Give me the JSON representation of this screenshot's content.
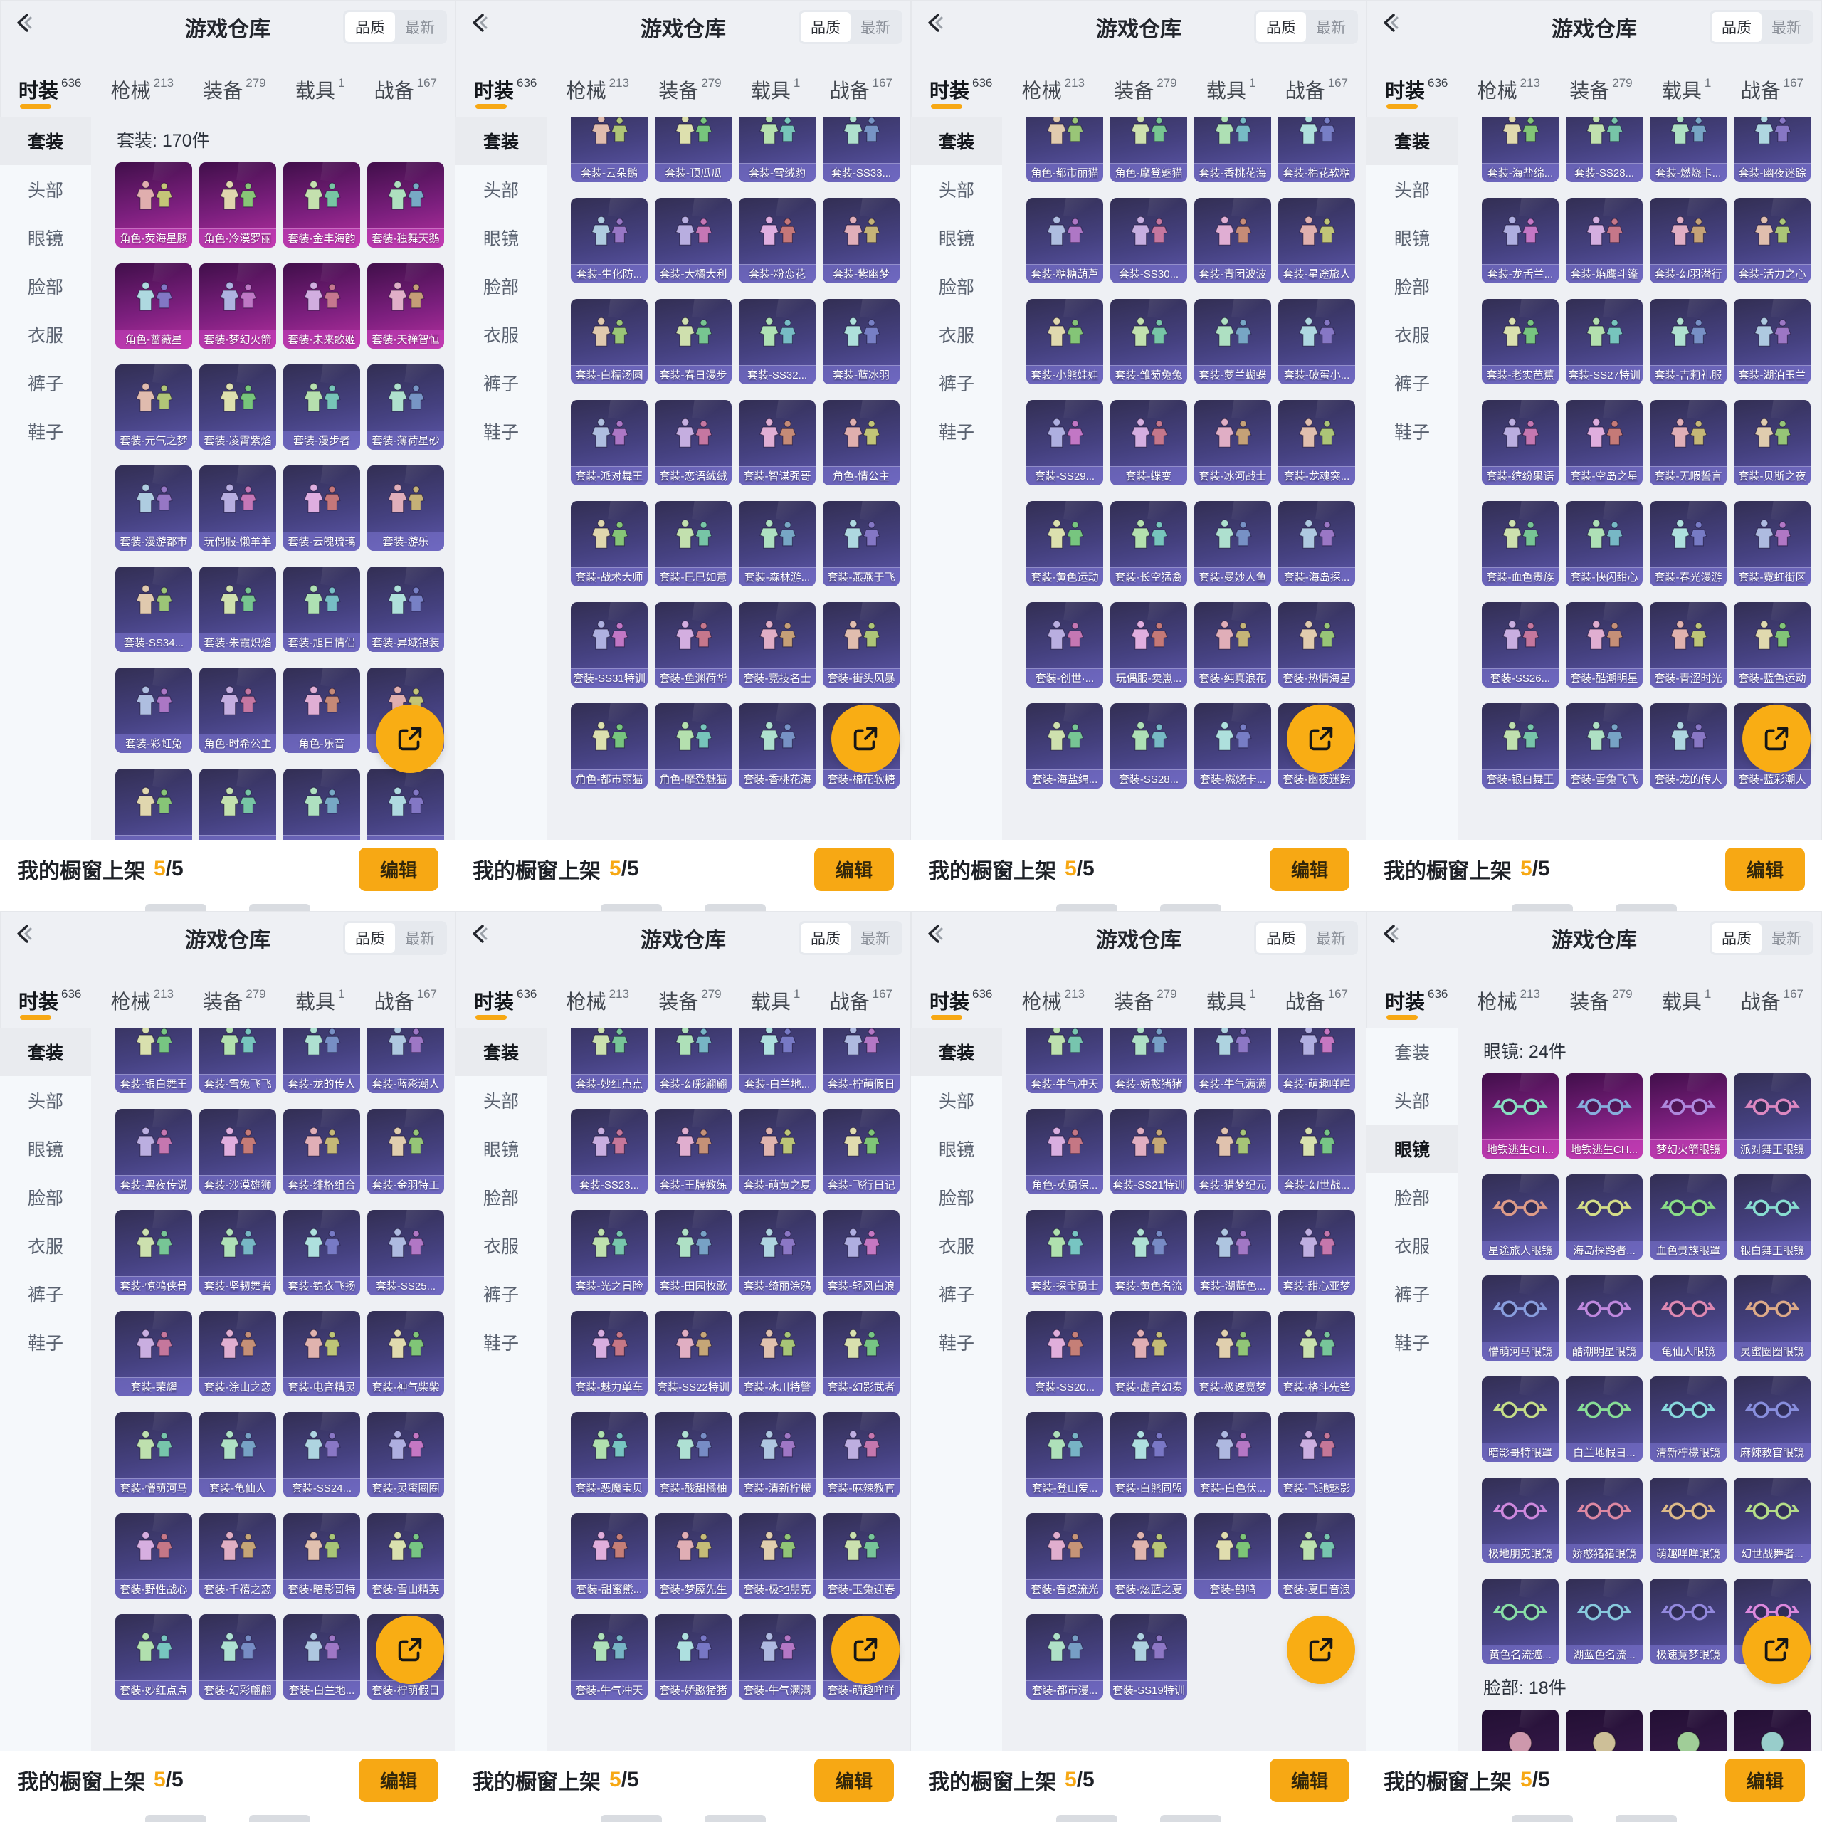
{
  "app": {
    "title": "游戏仓库",
    "filter": {
      "options": [
        "品质",
        "最新"
      ],
      "selected": "品质"
    },
    "tabs": [
      {
        "label": "时装",
        "count": "636",
        "active": true
      },
      {
        "label": "枪械",
        "count": "213",
        "active": false
      },
      {
        "label": "装备",
        "count": "279",
        "active": false
      },
      {
        "label": "载具",
        "count": "1",
        "active": false
      },
      {
        "label": "战备",
        "count": "167",
        "active": false
      }
    ],
    "sidebar": [
      "套装",
      "头部",
      "眼镜",
      "脸部",
      "衣服",
      "裤子",
      "鞋子"
    ],
    "bottom_bar": {
      "label": "我的橱窗上架",
      "current": "5",
      "separator": "/",
      "total": "5",
      "edit_label": "编辑"
    },
    "accent_color": "#f7a814",
    "legendary_color": "#b5309f",
    "normal_card_color": "#5d57ab"
  },
  "panels": [
    {
      "active_sidebar": "套装",
      "header": "套装: 170件",
      "icon": "outfit",
      "clip_top": false,
      "rows": [
        [
          {
            "label": "角色-荧海星豚",
            "q": "L"
          },
          {
            "label": "角色-冷漠罗丽",
            "q": "L"
          },
          {
            "label": "套装-金丰海韵",
            "q": "L"
          },
          {
            "label": "套装-独舞天鹅",
            "q": "L"
          }
        ],
        [
          {
            "label": "角色-蔷薇星",
            "q": "L"
          },
          {
            "label": "套装-梦幻火箭",
            "q": "L"
          },
          {
            "label": "套装-未来歌姬",
            "q": "L"
          },
          {
            "label": "套装-天禅智恒",
            "q": "L"
          }
        ],
        [
          {
            "label": "套装-元气之梦"
          },
          {
            "label": "套装-凌霄紫焰"
          },
          {
            "label": "套装-漫步者"
          },
          {
            "label": "套装-薄荷星砂"
          }
        ],
        [
          {
            "label": "套装-漫游都市"
          },
          {
            "label": "玩偶服-懒羊羊"
          },
          {
            "label": "套装-云魄琉璃"
          },
          {
            "label": "套装-游乐"
          }
        ],
        [
          {
            "label": "套装-SS34..."
          },
          {
            "label": "套装-朱霞炽焰"
          },
          {
            "label": "套装-旭日情侣"
          },
          {
            "label": "套装-异域银装"
          }
        ],
        [
          {
            "label": "套装-彩虹兔"
          },
          {
            "label": "角色-时希公主"
          },
          {
            "label": "角色-乐音"
          },
          {
            "label": ""
          }
        ],
        [
          {
            "label": ""
          },
          {
            "label": ""
          },
          {
            "label": ""
          },
          {
            "label": ""
          }
        ]
      ]
    },
    {
      "active_sidebar": "套装",
      "header": null,
      "icon": "outfit",
      "clip_top": true,
      "rows": [
        [
          {
            "label": "套装-云朵鹅"
          },
          {
            "label": "套装-顶瓜瓜"
          },
          {
            "label": "套装-雪绒豹"
          },
          {
            "label": "套装-SS33..."
          }
        ],
        [
          {
            "label": "套装-生化防..."
          },
          {
            "label": "套装-大橘大利"
          },
          {
            "label": "套装-粉恋花"
          },
          {
            "label": "套装-紫幽梦"
          }
        ],
        [
          {
            "label": "套装-白糯汤圆"
          },
          {
            "label": "套装-春日漫步"
          },
          {
            "label": "套装-SS32..."
          },
          {
            "label": "套装-蓝冰羽"
          }
        ],
        [
          {
            "label": "套装-派对舞王"
          },
          {
            "label": "套装-恋语绒绒"
          },
          {
            "label": "套装-智谋强哥"
          },
          {
            "label": "角色-情公主"
          }
        ],
        [
          {
            "label": "套装-战术大师"
          },
          {
            "label": "套装-巳巳如意"
          },
          {
            "label": "套装-森林游..."
          },
          {
            "label": "套装-燕燕于飞"
          }
        ],
        [
          {
            "label": "套装-SS31特训"
          },
          {
            "label": "套装-鱼渊荷华"
          },
          {
            "label": "套装-竞技名士"
          },
          {
            "label": "套装-街头风暴"
          }
        ],
        [
          {
            "label": "角色-都市丽猫"
          },
          {
            "label": "角色-摩登魅猫"
          },
          {
            "label": "套装-香桃花海"
          },
          {
            "label": "套装-棉花软糖"
          }
        ]
      ]
    },
    {
      "active_sidebar": "套装",
      "header": null,
      "icon": "outfit",
      "clip_top": true,
      "rows": [
        [
          {
            "label": "角色-都市丽猫"
          },
          {
            "label": "角色-摩登魅猫"
          },
          {
            "label": "套装-香桃花海"
          },
          {
            "label": "套装-棉花软糖"
          }
        ],
        [
          {
            "label": "套装-糖糖葫芦"
          },
          {
            "label": "套装-SS30..."
          },
          {
            "label": "套装-青团波波"
          },
          {
            "label": "套装-星途旅人"
          }
        ],
        [
          {
            "label": "套装-小熊娃娃"
          },
          {
            "label": "套装-雏菊兔兔"
          },
          {
            "label": "套装-萝兰蝴蝶"
          },
          {
            "label": "套装-破蛋小..."
          }
        ],
        [
          {
            "label": "套装-SS29..."
          },
          {
            "label": "套装-蝶变"
          },
          {
            "label": "套装-冰河战士"
          },
          {
            "label": "套装-龙魂突..."
          }
        ],
        [
          {
            "label": "套装-黄色运动"
          },
          {
            "label": "套装-长空猛禽"
          },
          {
            "label": "套装-曼妙人鱼"
          },
          {
            "label": "套装-海岛探..."
          }
        ],
        [
          {
            "label": "套装-创世·..."
          },
          {
            "label": "玩偶服-卖崽..."
          },
          {
            "label": "套装-纯真浪花"
          },
          {
            "label": "套装-热情海星"
          }
        ],
        [
          {
            "label": "套装-海盐绵..."
          },
          {
            "label": "套装-SS28..."
          },
          {
            "label": "套装-燃烧卡..."
          },
          {
            "label": "套装-幽夜迷踪"
          }
        ]
      ]
    },
    {
      "active_sidebar": "套装",
      "header": null,
      "icon": "outfit",
      "clip_top": true,
      "rows": [
        [
          {
            "label": "套装-海盐绵..."
          },
          {
            "label": "套装-SS28..."
          },
          {
            "label": "套装-燃烧卡..."
          },
          {
            "label": "套装-幽夜迷踪"
          }
        ],
        [
          {
            "label": "套装-龙舌兰..."
          },
          {
            "label": "套装-焰鹰斗篷"
          },
          {
            "label": "套装-幻羽潜行"
          },
          {
            "label": "套装-活力之心"
          }
        ],
        [
          {
            "label": "套装-老实芭蕉"
          },
          {
            "label": "套装-SS27特训"
          },
          {
            "label": "套装-吉莉礼服"
          },
          {
            "label": "套装-湖泊玉兰"
          }
        ],
        [
          {
            "label": "套装-缤纷果语"
          },
          {
            "label": "套装-空岛之星"
          },
          {
            "label": "套装-无暇誓言"
          },
          {
            "label": "套装-贝斯之夜"
          }
        ],
        [
          {
            "label": "套装-血色贵族"
          },
          {
            "label": "套装-快闪甜心"
          },
          {
            "label": "套装-春光漫游"
          },
          {
            "label": "套装-霓虹街区"
          }
        ],
        [
          {
            "label": "套装-SS26..."
          },
          {
            "label": "套装-酷潮明星"
          },
          {
            "label": "套装-青涩时光"
          },
          {
            "label": "套装-蓝色运动"
          }
        ],
        [
          {
            "label": "套装-银白舞王"
          },
          {
            "label": "套装-雪兔飞飞"
          },
          {
            "label": "套装-龙的传人"
          },
          {
            "label": "套装-蓝彩潮人"
          }
        ]
      ]
    },
    {
      "active_sidebar": "套装",
      "header": null,
      "icon": "outfit",
      "clip_top": true,
      "rows": [
        [
          {
            "label": "套装-银白舞王"
          },
          {
            "label": "套装-雪兔飞飞"
          },
          {
            "label": "套装-龙的传人"
          },
          {
            "label": "套装-蓝彩潮人"
          }
        ],
        [
          {
            "label": "套装-黑夜传说"
          },
          {
            "label": "套装-沙漠雄狮"
          },
          {
            "label": "套装-绯格组合"
          },
          {
            "label": "套装-金羽特工"
          }
        ],
        [
          {
            "label": "套装-惊鸿侠骨"
          },
          {
            "label": "套装-坚韧舞者"
          },
          {
            "label": "套装-锦衣飞扬"
          },
          {
            "label": "套装-SS25..."
          }
        ],
        [
          {
            "label": "套装-荣耀"
          },
          {
            "label": "套装-涂山之恋"
          },
          {
            "label": "套装-电音精灵"
          },
          {
            "label": "套装-神气柴柴"
          }
        ],
        [
          {
            "label": "套装-懵萌河马"
          },
          {
            "label": "套装-龟仙人"
          },
          {
            "label": "套装-SS24..."
          },
          {
            "label": "套装-灵蜜圈圈"
          }
        ],
        [
          {
            "label": "套装-野性战心"
          },
          {
            "label": "套装-千禧之恋"
          },
          {
            "label": "套装-暗影哥特"
          },
          {
            "label": "套装-雪山精英"
          }
        ],
        [
          {
            "label": "套装-妙红点点"
          },
          {
            "label": "套装-幻彩翩翩"
          },
          {
            "label": "套装-白兰地..."
          },
          {
            "label": "套装-柠萌假日"
          }
        ]
      ]
    },
    {
      "active_sidebar": "套装",
      "header": null,
      "icon": "outfit",
      "clip_top": true,
      "rows": [
        [
          {
            "label": "套装-妙红点点"
          },
          {
            "label": "套装-幻彩翩翩"
          },
          {
            "label": "套装-白兰地..."
          },
          {
            "label": "套装-柠萌假日"
          }
        ],
        [
          {
            "label": "套装-SS23..."
          },
          {
            "label": "套装-王牌教练"
          },
          {
            "label": "套装-萌黄之夏"
          },
          {
            "label": "套装-飞行日记"
          }
        ],
        [
          {
            "label": "套装-光之冒险"
          },
          {
            "label": "套装-田园牧歌"
          },
          {
            "label": "套装-绮丽涂鸦"
          },
          {
            "label": "套装-轻风白浪"
          }
        ],
        [
          {
            "label": "套装-魅力单车"
          },
          {
            "label": "套装-SS22特训"
          },
          {
            "label": "套装-冰川特警"
          },
          {
            "label": "套装-幻影武者"
          }
        ],
        [
          {
            "label": "套装-恶魔宝贝"
          },
          {
            "label": "套装-酸甜橘柚"
          },
          {
            "label": "套装-清新柠檬"
          },
          {
            "label": "套装-麻辣教官"
          }
        ],
        [
          {
            "label": "套装-甜蜜熊..."
          },
          {
            "label": "套装-梦魇先生"
          },
          {
            "label": "套装-极地朋克"
          },
          {
            "label": "套装-玉兔迎春"
          }
        ],
        [
          {
            "label": "套装-牛气冲天"
          },
          {
            "label": "套装-娇憨猪猪"
          },
          {
            "label": "套装-牛气满满"
          },
          {
            "label": "套装-萌趣咩咩"
          }
        ]
      ]
    },
    {
      "active_sidebar": "套装",
      "header": null,
      "icon": "outfit",
      "clip_top": true,
      "rows": [
        [
          {
            "label": "套装-牛气冲天"
          },
          {
            "label": "套装-娇憨猪猪"
          },
          {
            "label": "套装-牛气满满"
          },
          {
            "label": "套装-萌趣咩咩"
          }
        ],
        [
          {
            "label": "角色-英勇保..."
          },
          {
            "label": "套装-SS21特训"
          },
          {
            "label": "套装-猎梦纪元"
          },
          {
            "label": "套装-幻世战..."
          }
        ],
        [
          {
            "label": "套装-探宝勇士"
          },
          {
            "label": "套装-黄色名流"
          },
          {
            "label": "套装-湖蓝色..."
          },
          {
            "label": "套装-甜心亚梦"
          }
        ],
        [
          {
            "label": "套装-SS20..."
          },
          {
            "label": "套装-虚音幻奏"
          },
          {
            "label": "套装-极速竞梦"
          },
          {
            "label": "套装-格斗先锋"
          }
        ],
        [
          {
            "label": "套装-登山爱..."
          },
          {
            "label": "套装-白熊同盟"
          },
          {
            "label": "套装-白色伏..."
          },
          {
            "label": "套装-飞驰魅影"
          }
        ],
        [
          {
            "label": "套装-音速流光"
          },
          {
            "label": "套装-炫蓝之夏"
          },
          {
            "label": "套装-鹤鸣"
          },
          {
            "label": "套装-夏日音浪"
          }
        ],
        [
          {
            "label": "套装-都市漫..."
          },
          {
            "label": "套装-SS19特训"
          }
        ]
      ]
    },
    {
      "active_sidebar": "眼镜",
      "header": "眼镜: 24件",
      "icon": "glasses",
      "clip_top": false,
      "rows": [
        [
          {
            "label": "地铁逃生CH...",
            "q": "L"
          },
          {
            "label": "地铁逃生CH...",
            "q": "L"
          },
          {
            "label": "梦幻火箭眼镜",
            "q": "L"
          },
          {
            "label": "派对舞王眼镜"
          }
        ],
        [
          {
            "label": "星途旅人眼镜"
          },
          {
            "label": "海岛探路者..."
          },
          {
            "label": "血色贵族眼罩"
          },
          {
            "label": "银白舞王眼镜"
          }
        ],
        [
          {
            "label": "懵萌河马眼镜"
          },
          {
            "label": "酷潮明星眼镜"
          },
          {
            "label": "龟仙人眼镜"
          },
          {
            "label": "灵蜜圈圈眼镜"
          }
        ],
        [
          {
            "label": "暗影哥特眼罩"
          },
          {
            "label": "白兰地假日..."
          },
          {
            "label": "清新柠檬眼镜"
          },
          {
            "label": "麻辣教官眼镜"
          }
        ],
        [
          {
            "label": "极地朋克眼镜"
          },
          {
            "label": "娇憨猪猪眼镜"
          },
          {
            "label": "萌趣咩咩眼镜"
          },
          {
            "label": "幻世战舞者..."
          }
        ],
        [
          {
            "label": "黄色名流遮..."
          },
          {
            "label": "湖蓝色名流..."
          },
          {
            "label": "极速竞梦眼镜"
          },
          {
            "label": ""
          }
        ]
      ],
      "footer_header": "脸部: 18件",
      "footer_row": {
        "count": 4,
        "q": "D",
        "icon": "face"
      }
    }
  ]
}
